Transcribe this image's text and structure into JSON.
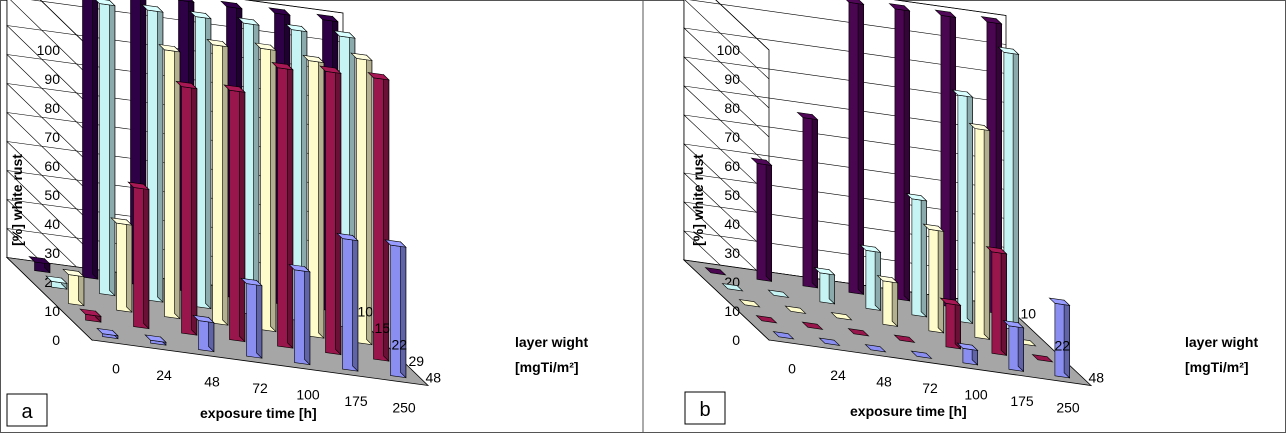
{
  "chart_data": [
    {
      "type": "bar",
      "panel_label": "a",
      "categories": [
        "0",
        "24",
        "48",
        "72",
        "100",
        "175",
        "250"
      ],
      "xlabel": "exposure time [h]",
      "ylabel": "[%] white rust",
      "zlabel": [
        "layer wight",
        "[mgTi/m²]"
      ],
      "ylim": [
        0,
        100
      ],
      "yticks": [
        "0",
        "10",
        "20",
        "30",
        "40",
        "50",
        "60",
        "70",
        "80",
        "90",
        "100"
      ],
      "grid": true,
      "colors": {
        "s1": "#2e0045",
        "s2": "#c6f3f4",
        "s3": "#fefccb",
        "s4": "#98164c",
        "s5": "#8a8ef1"
      },
      "series": [
        {
          "name": "10",
          "color_key": "s1",
          "values": [
            3,
            100,
            100,
            100,
            100,
            100,
            100
          ]
        },
        {
          "name": "15",
          "color_key": "s2",
          "values": [
            2,
            100,
            100,
            100,
            100,
            100,
            100
          ]
        },
        {
          "name": "22",
          "color_key": "s3",
          "values": [
            10,
            30,
            92,
            96,
            97,
            95,
            98
          ]
        },
        {
          "name": "29",
          "color_key": "s4",
          "values": [
            2,
            48,
            85,
            86,
            96,
            97,
            97
          ]
        },
        {
          "name": "48",
          "color_key": "s5",
          "values": [
            1,
            1,
            10,
            25,
            32,
            45,
            45
          ]
        }
      ]
    },
    {
      "type": "bar",
      "panel_label": "b",
      "categories": [
        "0",
        "24",
        "48",
        "72",
        "100",
        "175",
        "250"
      ],
      "xlabel": "exposure time [h]",
      "ylabel": "[%] white rust",
      "zlabel": [
        "layer wight",
        "[mgTi/m²]"
      ],
      "ylim": [
        0,
        100
      ],
      "yticks": [
        "0",
        "10",
        "20",
        "30",
        "40",
        "50",
        "60",
        "70",
        "80",
        "90",
        "100"
      ],
      "grid": true,
      "colors": {
        "s1": "#4a0650",
        "s2": "#c6f3f4",
        "s3": "#fefccb",
        "s4": "#98164c",
        "s5": "#8a8ef1"
      },
      "series": [
        {
          "name": "10",
          "color_key": "s1",
          "values": [
            0,
            40,
            58,
            100,
            100,
            100,
            100
          ]
        },
        {
          "name": "",
          "color_key": "s2",
          "values": [
            0,
            0,
            10,
            20,
            40,
            78,
            95
          ]
        },
        {
          "name": "22",
          "color_key": "s3",
          "values": [
            0,
            0,
            0,
            15,
            35,
            72,
            0
          ]
        },
        {
          "name": "",
          "color_key": "s4",
          "values": [
            0,
            0,
            0,
            0,
            15,
            35,
            0
          ]
        },
        {
          "name": "48",
          "color_key": "s5",
          "values": [
            0,
            0,
            0,
            0,
            5,
            15,
            25
          ]
        }
      ]
    }
  ]
}
